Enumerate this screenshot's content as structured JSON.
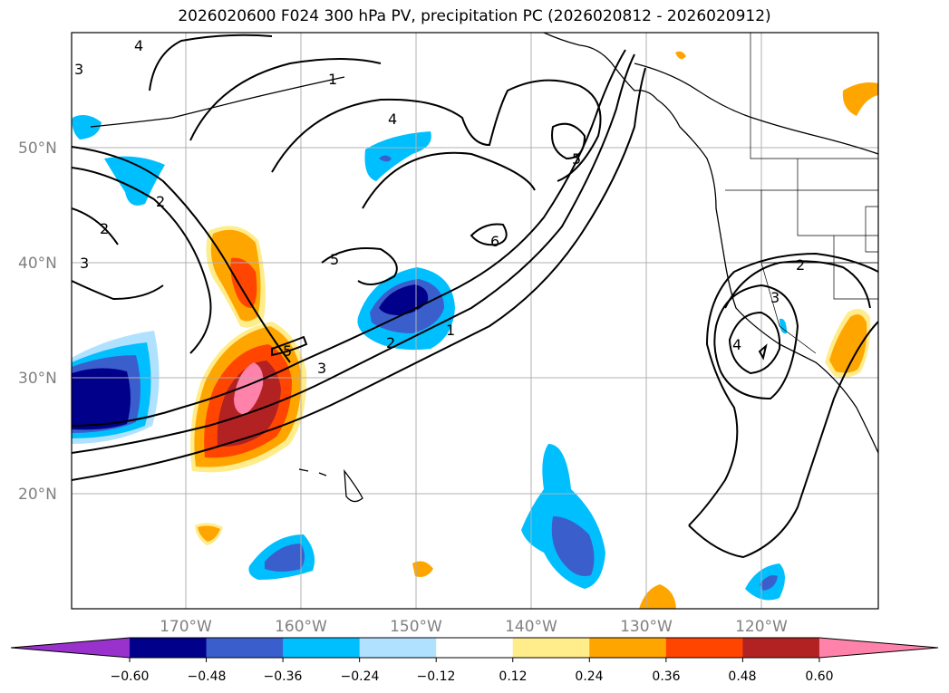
{
  "title": "2026020600 F024 300 hPa PV, precipitation PC (2026020812 - 2026020912)",
  "map": {
    "lat_labels": [
      "50°N",
      "40°N",
      "30°N",
      "20°N"
    ],
    "lon_labels": [
      "170°W",
      "160°W",
      "150°W",
      "140°W",
      "130°W",
      "120°W"
    ],
    "contour_labels": [
      "4",
      "1",
      "4",
      "5",
      "3",
      "2",
      "2",
      "3",
      "5",
      "6",
      "5",
      "1",
      "2",
      "3",
      "2",
      "3",
      "4"
    ],
    "features": [
      "300 hPa PV contours",
      "precipitation PC shading",
      "coastlines",
      "state/country borders"
    ]
  },
  "colorbar": {
    "ticks": [
      "−0.60",
      "−0.48",
      "−0.36",
      "−0.24",
      "−0.12",
      "0.12",
      "0.24",
      "0.36",
      "0.48",
      "0.60"
    ],
    "colors": [
      "#9932cc",
      "#00008b",
      "#3a5fcd",
      "#00bfff",
      "#b0e2ff",
      "#ffffff",
      "#ffec8b",
      "#ffa500",
      "#ff4500",
      "#b22222",
      "#ff82ab"
    ]
  }
}
